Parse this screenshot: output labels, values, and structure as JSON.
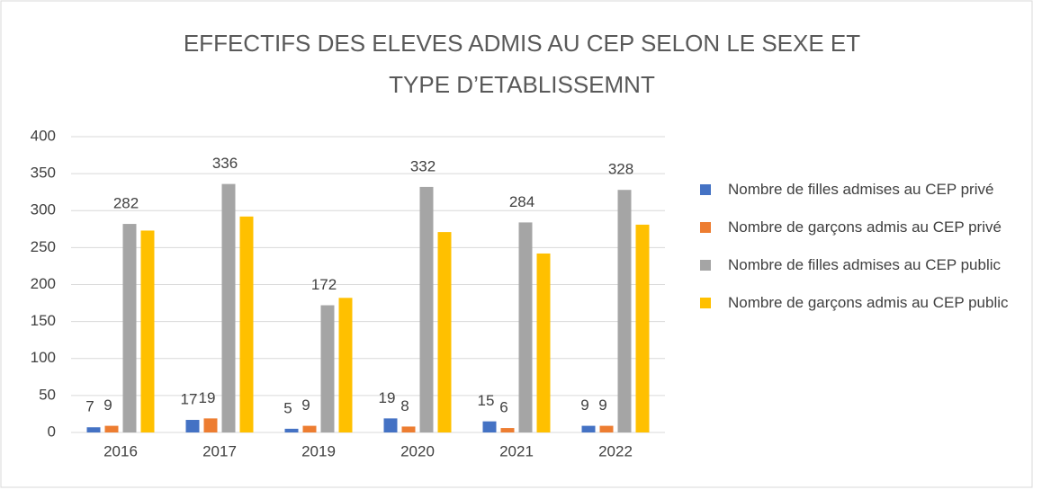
{
  "chart_data": {
    "type": "bar",
    "title_lines": [
      "EFFECTIFS DES ELEVES ADMIS AU CEP SELON LE SEXE ET",
      "TYPE D’ETABLISSEMNT"
    ],
    "categories": [
      "2016",
      "2017",
      "2019",
      "2020",
      "2021",
      "2022"
    ],
    "series": [
      {
        "name": "Nombre de filles admises au CEP privé",
        "color": "#4472c4",
        "values": [
          7,
          17,
          5,
          19,
          15,
          9
        ],
        "data_labels": true
      },
      {
        "name": "Nombre de garçons admis au CEP privé",
        "color": "#ed7d31",
        "values": [
          9,
          19,
          9,
          8,
          6,
          9
        ],
        "data_labels": true
      },
      {
        "name": "Nombre de filles admises au CEP public",
        "color": "#a5a5a5",
        "values": [
          282,
          336,
          172,
          332,
          284,
          328
        ],
        "data_labels": true
      },
      {
        "name": "Nombre de garçons admis au CEP public",
        "color": "#ffc000",
        "values": [
          273,
          292,
          182,
          271,
          242,
          281
        ],
        "data_labels": false
      }
    ],
    "ylim": [
      0,
      400
    ],
    "yticks": [
      0,
      50,
      100,
      150,
      200,
      250,
      300,
      350,
      400
    ],
    "grid": true,
    "legend": "right"
  }
}
